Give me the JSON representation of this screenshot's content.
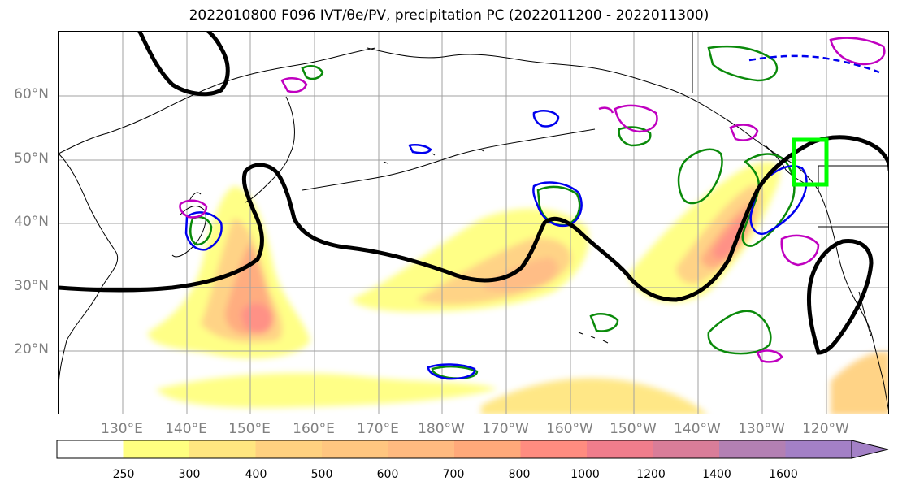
{
  "title": "2022010800 F096 IVT/θe/PV, precipitation PC (2022011200 - 2022011300)",
  "lat_labels": [
    "60°N",
    "50°N",
    "40°N",
    "30°N",
    "20°N"
  ],
  "lon_labels": [
    "130°E",
    "140°E",
    "150°E",
    "160°E",
    "170°E",
    "180°W",
    "170°W",
    "160°W",
    "150°W",
    "140°W",
    "130°W",
    "120°W"
  ],
  "colorbar": {
    "ticks": [
      "250",
      "300",
      "400",
      "500",
      "600",
      "700",
      "800",
      "1000",
      "1200",
      "1400",
      "1600"
    ],
    "colors": [
      "#ffffff",
      "#ffff80",
      "#ffe680",
      "#ffd180",
      "#ffc680",
      "#ffba80",
      "#ffa97a",
      "#ff8c80",
      "#f07d8c",
      "#d97d99",
      "#b380b3",
      "#a380c6"
    ]
  },
  "colors": {
    "theta_e_contour": "#000000",
    "green_contour": "#0a8a0a",
    "blue_contour": "#0000ee",
    "magenta_contour": "#c000c0",
    "target_box": "#00ff00",
    "grid": "#a0a0a0"
  }
}
